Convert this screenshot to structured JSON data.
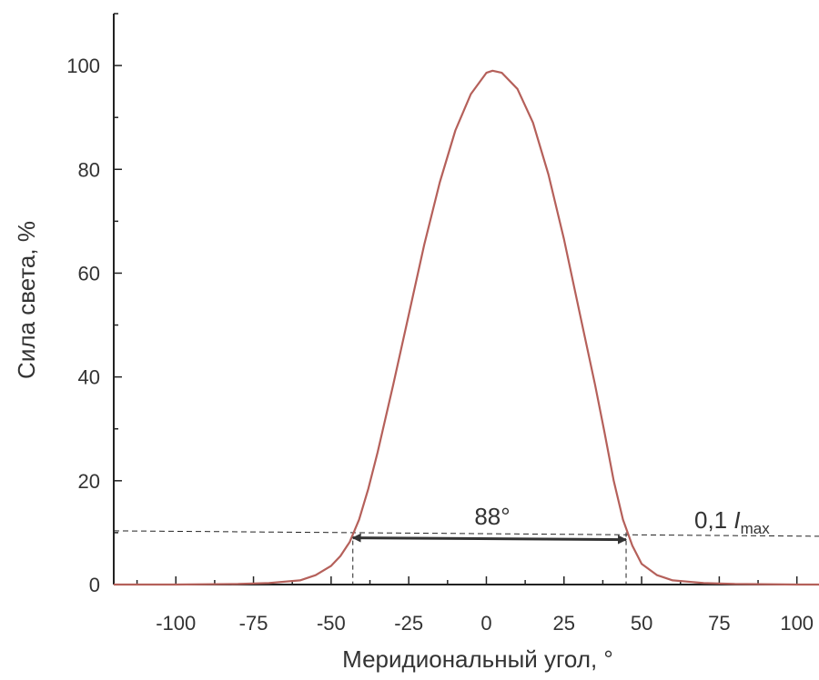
{
  "chart_data": {
    "type": "line",
    "xlabel": "Меридиональный угол, °",
    "ylabel": "Сила света, %",
    "xlim": [
      -120,
      108
    ],
    "ylim": [
      0,
      110
    ],
    "x_ticks": [
      -100,
      -75,
      -50,
      -25,
      0,
      25,
      50,
      75,
      100
    ],
    "x_tick_labels": [
      "-100",
      "-75",
      "-50",
      "-25",
      "0",
      "25",
      "50",
      "75",
      "100"
    ],
    "y_ticks": [
      0,
      20,
      40,
      60,
      80,
      100
    ],
    "y_tick_labels": [
      "0",
      "20",
      "40",
      "60",
      "80",
      "100"
    ],
    "grid": false,
    "colors": {
      "curve": "#b5605a",
      "axis": "#222222",
      "arrow": "#333333",
      "text": "#333333"
    },
    "series": [
      {
        "x": [
          -120,
          -100,
          -80,
          -70,
          -60,
          -55,
          -50,
          -47,
          -44,
          -41,
          -38,
          -35,
          -30,
          -25,
          -20,
          -15,
          -10,
          -5,
          0,
          2,
          5,
          10,
          15,
          20,
          25,
          30,
          35,
          38,
          41,
          44,
          47,
          50,
          55,
          60,
          70,
          80,
          100,
          108
        ],
        "values": [
          0,
          0,
          0.1,
          0.3,
          0.8,
          1.8,
          3.6,
          5.5,
          8.2,
          12.5,
          18.5,
          25.5,
          38.5,
          52,
          65.5,
          77.5,
          87.5,
          94.5,
          98.6,
          99,
          98.6,
          95.5,
          89,
          79,
          66.5,
          52.5,
          38.5,
          29.5,
          20,
          12.5,
          7.5,
          4,
          1.8,
          0.8,
          0.3,
          0.1,
          0,
          0
        ]
      }
    ],
    "threshold": {
      "y": 10,
      "label_main": "0,1 ",
      "label_italic": "I",
      "label_sub": "max"
    },
    "width_marker": {
      "x1": -43,
      "x2": 45,
      "y": 9,
      "label": "88°"
    }
  }
}
